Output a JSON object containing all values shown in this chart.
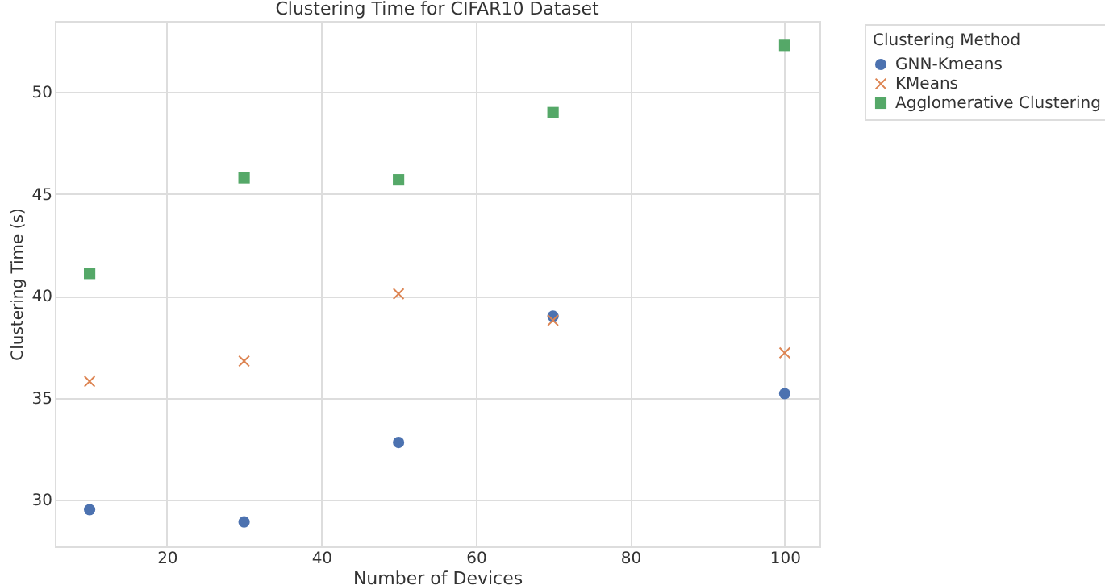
{
  "chart_data": {
    "type": "scatter",
    "title": "Clustering Time for CIFAR10 Dataset",
    "xlabel": "Number of Devices",
    "ylabel": "Clustering Time (s)",
    "legend_title": "Clustering Method",
    "x": [
      10,
      30,
      50,
      70,
      100
    ],
    "series": [
      {
        "name": "GNN-Kmeans",
        "color": "#4c72b0",
        "marker": "circle",
        "values": [
          29.5,
          28.9,
          32.8,
          39.0,
          35.2
        ]
      },
      {
        "name": "KMeans",
        "color": "#dd8452",
        "marker": "cross",
        "values": [
          35.8,
          36.8,
          40.1,
          38.8,
          37.2
        ]
      },
      {
        "name": "Agglomerative Clustering",
        "color": "#55a868",
        "marker": "square",
        "values": [
          41.1,
          45.8,
          45.7,
          49.0,
          52.3
        ]
      }
    ],
    "xlim": [
      5.5,
      104.5
    ],
    "xticks": [
      20,
      40,
      60,
      80,
      100
    ],
    "ylim": [
      27.7,
      53.5
    ],
    "yticks": [
      30,
      35,
      40,
      45,
      50
    ],
    "grid": true,
    "legend": "top right"
  }
}
